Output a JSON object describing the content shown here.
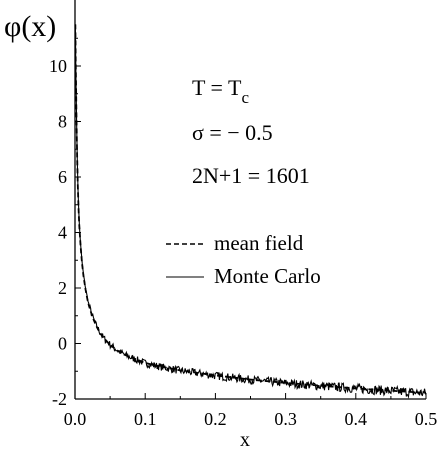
{
  "chart_data": {
    "type": "line",
    "title": "",
    "xlabel": "x",
    "ylabel": "φ(x)",
    "xlim": [
      0.0,
      0.5
    ],
    "ylim": [
      -2,
      11.5
    ],
    "grid": false,
    "x_ticks": [
      {
        "value": 0.0,
        "label": "0.0"
      },
      {
        "value": 0.1,
        "label": "0.1"
      },
      {
        "value": 0.2,
        "label": "0.2"
      },
      {
        "value": 0.3,
        "label": "0.3"
      },
      {
        "value": 0.4,
        "label": "0.4"
      },
      {
        "value": 0.5,
        "label": "0.5"
      }
    ],
    "y_ticks": [
      {
        "value": -2,
        "label": "-2"
      },
      {
        "value": 0,
        "label": "0"
      },
      {
        "value": 2,
        "label": "2"
      },
      {
        "value": 4,
        "label": "4"
      },
      {
        "value": 6,
        "label": "6"
      },
      {
        "value": 8,
        "label": "8"
      },
      {
        "value": 10,
        "label": "10"
      }
    ],
    "annotations": {
      "temperature": {
        "main": "T = T",
        "sub": "c"
      },
      "sigma": "σ = − 0.5",
      "size": "2N+1 = 1601"
    },
    "legend": {
      "placement": "right-middle",
      "entries": [
        {
          "label": "mean field",
          "style": "dashed"
        },
        {
          "label": "Monte Carlo",
          "style": "solid"
        }
      ]
    },
    "series": [
      {
        "name": "mean field",
        "style": "dashed",
        "x": [
          0.0005,
          0.001,
          0.0015,
          0.002,
          0.003,
          0.004,
          0.005,
          0.006,
          0.008,
          0.01,
          0.012,
          0.015,
          0.018,
          0.02,
          0.025,
          0.03,
          0.035,
          0.04,
          0.05,
          0.06,
          0.07,
          0.08,
          0.1,
          0.12,
          0.15,
          0.2,
          0.25,
          0.3,
          0.35,
          0.4,
          0.45,
          0.5
        ],
        "y": [
          11.5,
          10.2,
          9.3,
          8.3,
          6.8,
          5.7,
          4.9,
          4.3,
          3.5,
          2.9,
          2.45,
          1.95,
          1.55,
          1.35,
          0.95,
          0.65,
          0.42,
          0.22,
          -0.05,
          -0.25,
          -0.4,
          -0.5,
          -0.7,
          -0.82,
          -0.97,
          -1.15,
          -1.3,
          -1.42,
          -1.52,
          -1.62,
          -1.7,
          -1.78
        ]
      },
      {
        "name": "Monte Carlo",
        "style": "solid",
        "noisy": true,
        "x": [
          0.0005,
          0.001,
          0.0015,
          0.002,
          0.003,
          0.004,
          0.005,
          0.006,
          0.008,
          0.01,
          0.012,
          0.015,
          0.018,
          0.02,
          0.025,
          0.03,
          0.035,
          0.04,
          0.05,
          0.06,
          0.07,
          0.08,
          0.1,
          0.12,
          0.15,
          0.2,
          0.25,
          0.3,
          0.35,
          0.4,
          0.45,
          0.5
        ],
        "y": [
          11.5,
          10.3,
          9.4,
          8.4,
          6.9,
          5.8,
          5.0,
          4.35,
          3.55,
          2.95,
          2.5,
          2.0,
          1.6,
          1.38,
          0.97,
          0.66,
          0.43,
          0.22,
          -0.04,
          -0.24,
          -0.4,
          -0.51,
          -0.71,
          -0.83,
          -0.98,
          -1.16,
          -1.31,
          -1.43,
          -1.53,
          -1.62,
          -1.71,
          -1.79
        ]
      }
    ]
  }
}
